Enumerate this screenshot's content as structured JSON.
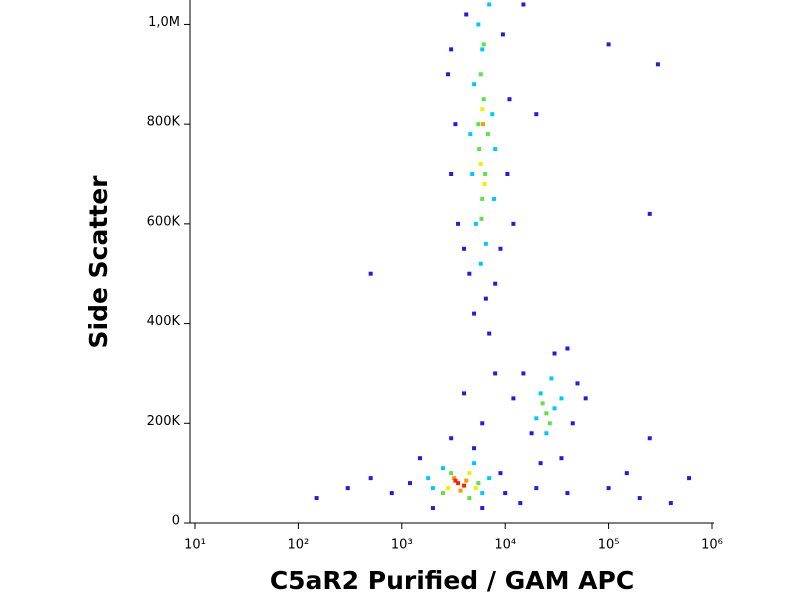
{
  "chart_data": {
    "type": "scatter",
    "xlabel": "C5aR2 Purified  / GAM APC",
    "ylabel": "Side Scatter",
    "xscale": "log",
    "xlim": [
      10,
      1000000
    ],
    "ylim": [
      0,
      1045000
    ],
    "xticks": [
      {
        "value": 10,
        "label": "10¹"
      },
      {
        "value": 100,
        "label": "10²"
      },
      {
        "value": 1000,
        "label": "10³"
      },
      {
        "value": 10000,
        "label": "10⁴"
      },
      {
        "value": 100000,
        "label": "10⁵"
      },
      {
        "value": 1000000,
        "label": "10⁶"
      }
    ],
    "yticks": [
      0,
      {
        "value": 200000,
        "label": "200K"
      },
      {
        "value": 400000,
        "label": "400K"
      },
      {
        "value": 600000,
        "label": "600K"
      },
      {
        "value": 800000,
        "label": "800K"
      },
      {
        "value": 1000000,
        "label": "1,0M"
      }
    ],
    "series": [
      {
        "color": "#1f1fd6",
        "x": [
          3000,
          3500,
          4200,
          9500,
          10500,
          3300,
          11000,
          4500,
          8000,
          6500,
          5000,
          7000,
          3000,
          12000,
          15000,
          2800,
          4000,
          9000,
          20000,
          500,
          15000,
          50000,
          45000,
          18000,
          30000,
          22000,
          60000,
          12000,
          8000,
          35000,
          40000,
          6000,
          1200,
          800,
          1500,
          9000,
          10000,
          14000,
          500,
          300,
          150,
          2000,
          6000,
          20000,
          40000,
          100000,
          200000,
          400000,
          600000,
          150000,
          250000,
          300000,
          100000,
          250000,
          3000,
          5000,
          4000
        ],
        "values": [
          950000,
          600000,
          1020000,
          980000,
          700000,
          800000,
          850000,
          500000,
          480000,
          450000,
          420000,
          380000,
          700000,
          600000,
          1040000,
          900000,
          550000,
          550000,
          820000,
          500000,
          300000,
          280000,
          200000,
          180000,
          340000,
          120000,
          250000,
          250000,
          300000,
          130000,
          350000,
          200000,
          80000,
          60000,
          130000,
          100000,
          60000,
          40000,
          90000,
          70000,
          50000,
          30000,
          30000,
          70000,
          60000,
          70000,
          50000,
          40000,
          90000,
          100000,
          170000,
          920000,
          960000,
          620000,
          170000,
          150000,
          260000
        ]
      },
      {
        "color": "#00c8ff",
        "x": [
          5500,
          6000,
          5000,
          7500,
          4800,
          7800,
          5200,
          6500,
          5800,
          7000,
          4600,
          8000,
          22000,
          30000,
          25000,
          28000,
          20000,
          35000,
          2000,
          6000,
          2500,
          5000,
          1800,
          7000
        ],
        "values": [
          1000000,
          950000,
          880000,
          820000,
          700000,
          650000,
          600000,
          560000,
          520000,
          1040000,
          780000,
          750000,
          260000,
          230000,
          180000,
          290000,
          210000,
          250000,
          70000,
          60000,
          110000,
          120000,
          90000,
          90000
        ]
      },
      {
        "color": "#5ee04a",
        "x": [
          5800,
          6200,
          5600,
          6400,
          6000,
          5500,
          6800,
          6200,
          5900,
          25000,
          27000,
          23000,
          2500,
          5500,
          3000,
          4500
        ],
        "values": [
          900000,
          850000,
          750000,
          700000,
          650000,
          800000,
          780000,
          960000,
          610000,
          220000,
          200000,
          240000,
          60000,
          80000,
          100000,
          50000
        ]
      },
      {
        "color": "#eef000",
        "x": [
          6000,
          5800,
          6300,
          2800,
          4500,
          5200
        ],
        "values": [
          830000,
          720000,
          680000,
          70000,
          100000,
          70000
        ]
      },
      {
        "color": "#ff9900",
        "x": [
          6100,
          3200,
          4200,
          3700
        ],
        "values": [
          800000,
          90000,
          85000,
          65000
        ]
      },
      {
        "color": "#ff2200",
        "x": [
          3500,
          4000,
          3300
        ],
        "values": [
          80000,
          75000,
          85000
        ]
      }
    ]
  }
}
